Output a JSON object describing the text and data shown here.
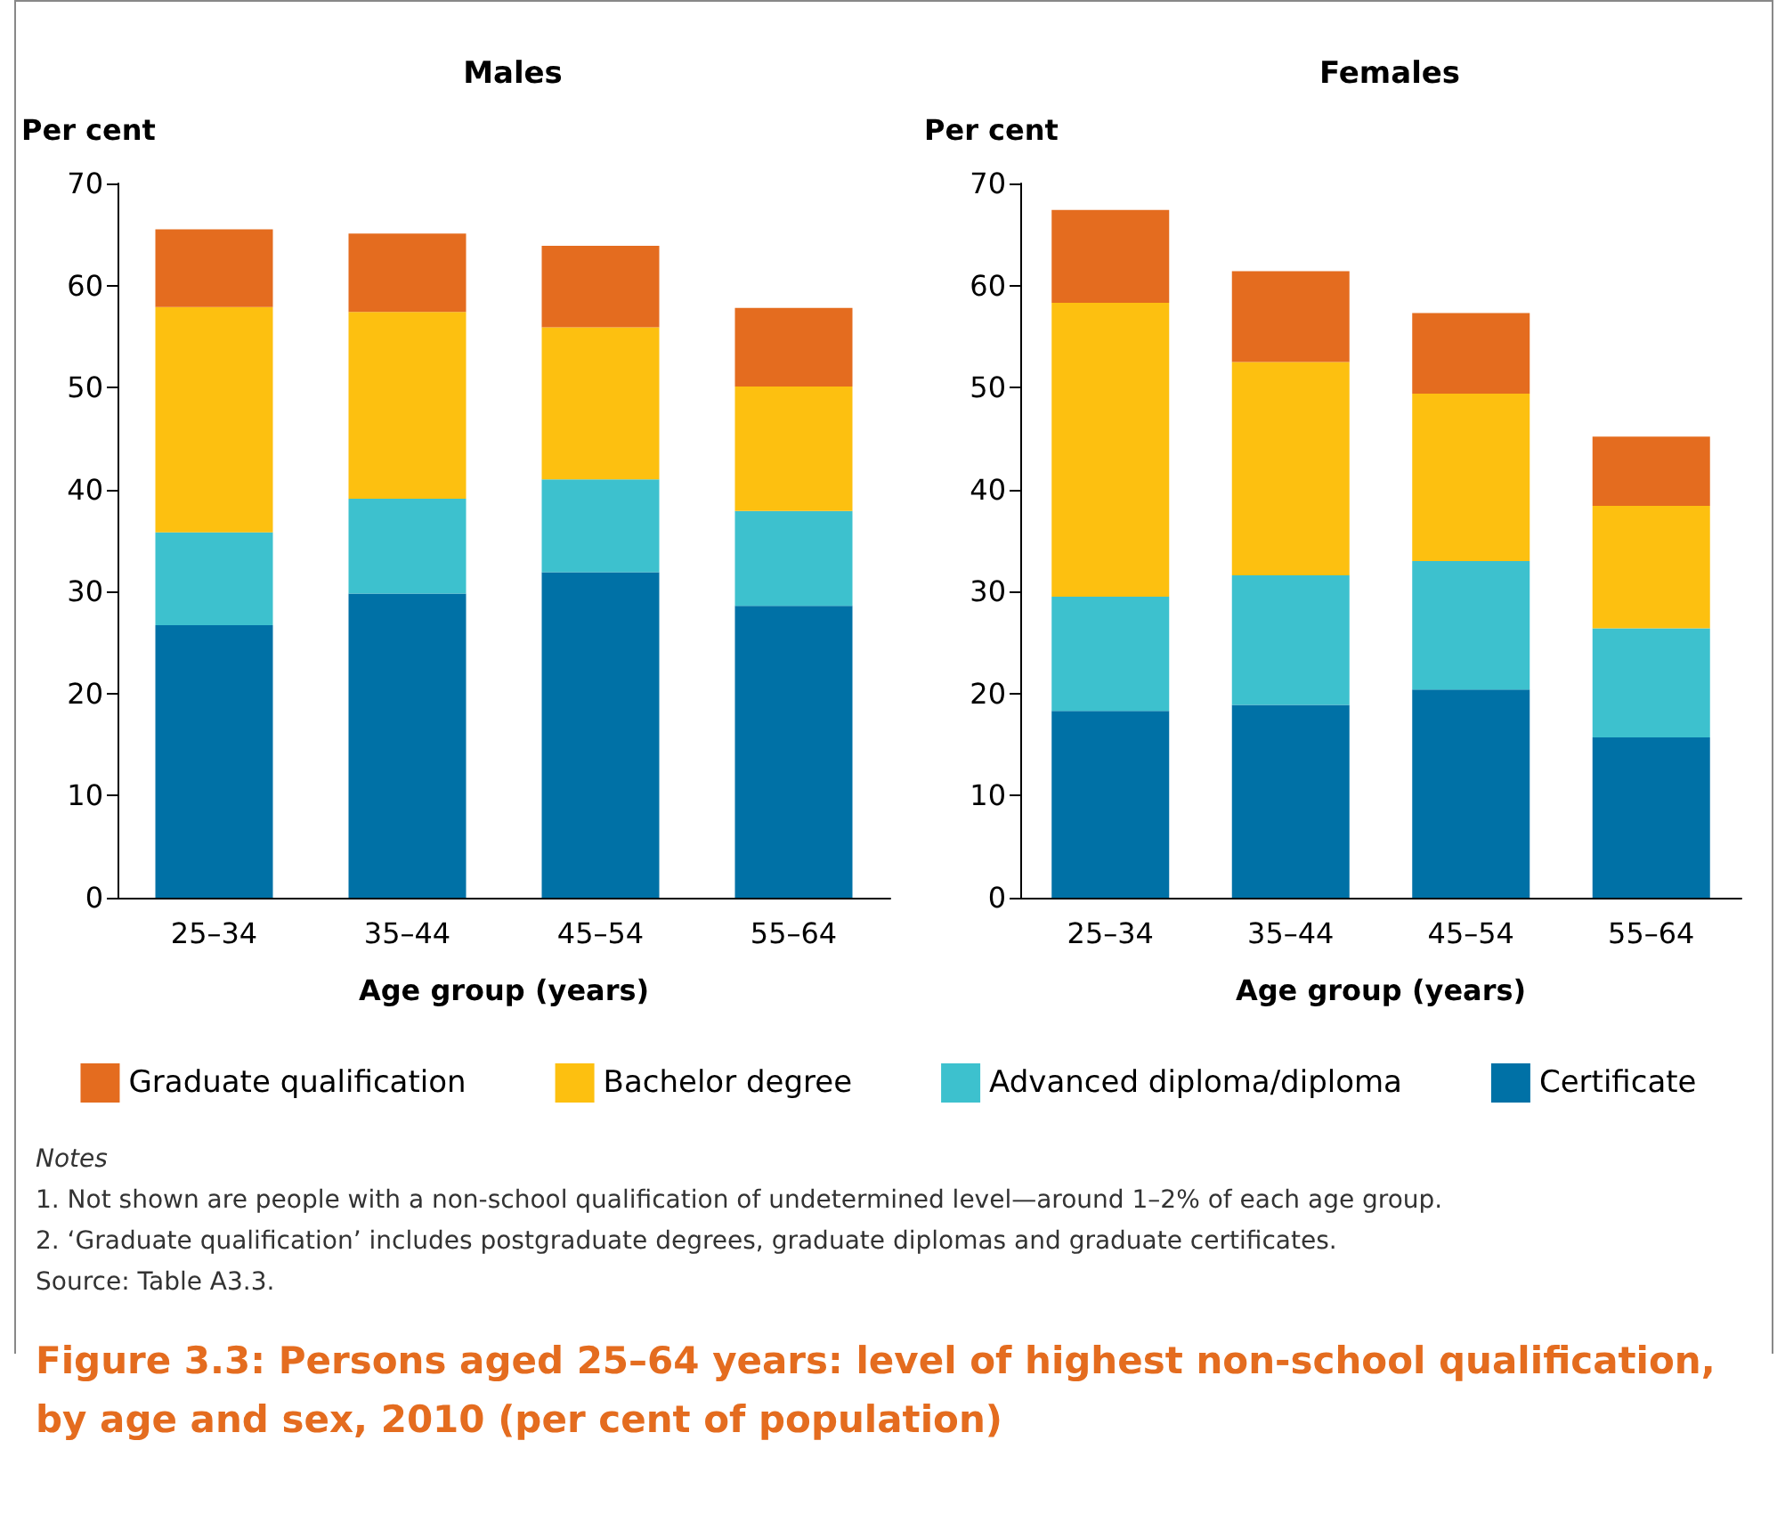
{
  "chart_data": [
    {
      "type": "bar",
      "title": "Males",
      "ylabel": "Per cent",
      "xlabel": "Age group (years)",
      "categories": [
        "25–34",
        "35–44",
        "45–54",
        "55–64"
      ],
      "stacked": true,
      "legend": "bottom",
      "grid": false,
      "ylim": [
        0,
        70
      ],
      "yticks": [
        0,
        10,
        20,
        30,
        40,
        50,
        60,
        70
      ],
      "series": [
        {
          "name": "Certificate",
          "color": "#0071a6",
          "values": [
            26.7,
            29.8,
            31.9,
            28.6
          ]
        },
        {
          "name": "Advanced diploma/diploma",
          "color": "#3dc1ce",
          "values": [
            9.1,
            9.3,
            9.1,
            9.3
          ]
        },
        {
          "name": "Bachelor degree",
          "color": "#fdc010",
          "values": [
            22.1,
            18.3,
            14.9,
            12.2
          ]
        },
        {
          "name": "Graduate qualification",
          "color": "#e46c1f",
          "values": [
            7.6,
            7.7,
            8.0,
            7.7
          ]
        }
      ],
      "annotations": [
        "Notes",
        "1.   Not shown are people with a non-school qualification of undetermined level—around 1–2% of each age group.",
        "2.   ‘Graduate qualification’ includes postgraduate degrees, graduate diplomas and graduate certificates.",
        "Source: Table A3.3.",
        "Figure 3.3: Persons aged 25–64 years: level of highest non-school qualification, by age and sex, 2010 (per cent of population)"
      ]
    },
    {
      "type": "bar",
      "title": "Females",
      "ylabel": "Per cent",
      "xlabel": "Age group (years)",
      "categories": [
        "25–34",
        "35–44",
        "45–54",
        "55–64"
      ],
      "stacked": true,
      "legend": false,
      "grid": false,
      "ylim": [
        0,
        70
      ],
      "yticks": [
        0,
        10,
        20,
        30,
        40,
        50,
        60,
        70
      ],
      "series": [
        {
          "color": "#0071a6",
          "values": [
            18.3,
            18.9,
            20.4,
            15.7
          ]
        },
        {
          "color": "#3dc1ce",
          "values": [
            11.2,
            12.7,
            12.6,
            10.7
          ]
        },
        {
          "color": "#fdc010",
          "values": [
            28.8,
            20.9,
            16.4,
            12.0
          ]
        },
        {
          "color": "#e46c1f",
          "values": [
            9.1,
            8.9,
            7.9,
            6.8
          ]
        }
      ]
    }
  ]
}
